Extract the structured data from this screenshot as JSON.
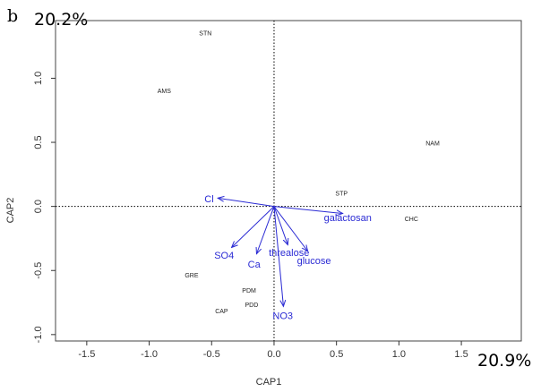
{
  "panel_label": "b",
  "chart_data": {
    "type": "scatter",
    "xlabel": "CAP1",
    "ylabel": "CAP2",
    "xlim": [
      -1.75,
      1.98
    ],
    "ylim": [
      -1.05,
      1.45
    ],
    "x_ticks": [
      -1.5,
      -1.0,
      -0.5,
      0.0,
      0.5,
      1.0,
      1.5
    ],
    "x_tick_labels": [
      "-1.5",
      "-1.0",
      "-0.5",
      "0.0",
      "0.5",
      "1.0",
      "1.5"
    ],
    "y_ticks": [
      -1.0,
      -0.5,
      0.0,
      0.5,
      1.0
    ],
    "y_tick_labels": [
      "-1.0",
      "-0.5",
      "0.0",
      "0.5",
      "1.0"
    ],
    "x_variance_label": "20.9%",
    "y_variance_label": "20.2%",
    "grid": false,
    "reference_lines": {
      "x": 0,
      "y": 0,
      "style": "dotted"
    },
    "sites": [
      {
        "label": "STN",
        "x": -0.55,
        "y": 1.35
      },
      {
        "label": "AMS",
        "x": -0.88,
        "y": 0.9
      },
      {
        "label": "NAM",
        "x": 1.27,
        "y": 0.49
      },
      {
        "label": "STP",
        "x": 0.54,
        "y": 0.1
      },
      {
        "label": "CHC",
        "x": 1.1,
        "y": -0.1
      },
      {
        "label": "GRE",
        "x": -0.66,
        "y": -0.54
      },
      {
        "label": "PDM",
        "x": -0.2,
        "y": -0.66
      },
      {
        "label": "PDD",
        "x": -0.18,
        "y": -0.77
      },
      {
        "label": "CAP",
        "x": -0.42,
        "y": -0.82
      }
    ],
    "vectors": [
      {
        "label": "Cl",
        "x": -0.45,
        "y": 0.065,
        "label_x": -0.52,
        "label_y": 0.06
      },
      {
        "label": "galactosan",
        "x": 0.55,
        "y": -0.055,
        "label_x": 0.59,
        "label_y": -0.085
      },
      {
        "label": "SO4",
        "x": -0.34,
        "y": -0.32,
        "label_x": -0.4,
        "label_y": -0.38
      },
      {
        "label": "Ca",
        "x": -0.14,
        "y": -0.37,
        "label_x": -0.16,
        "label_y": -0.45
      },
      {
        "label": "threalose",
        "x": 0.11,
        "y": -0.3,
        "label_x": 0.12,
        "label_y": -0.36
      },
      {
        "label": "glucose",
        "x": 0.27,
        "y": -0.35,
        "label_x": 0.32,
        "label_y": -0.42
      },
      {
        "label": "NO3",
        "x": 0.075,
        "y": -0.78,
        "label_x": 0.07,
        "label_y": -0.85
      }
    ],
    "colors": {
      "vectors": "#2b2bd4",
      "sites": "#222222",
      "axes": "#333333"
    }
  }
}
